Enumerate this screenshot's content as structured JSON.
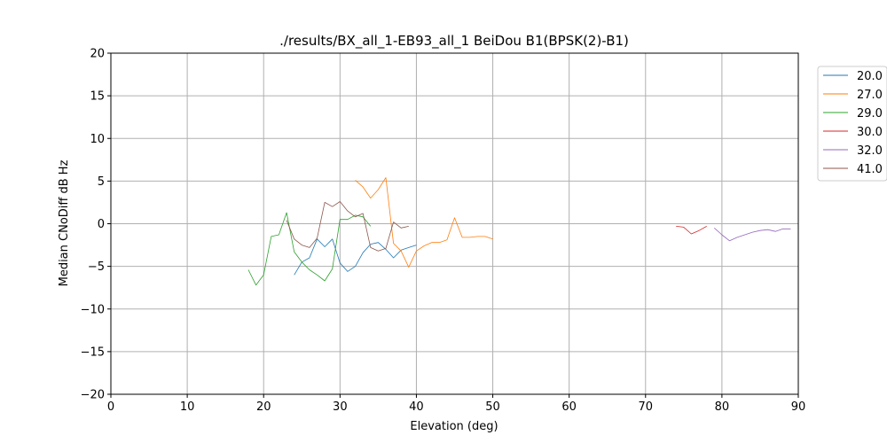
{
  "chart_data": {
    "type": "line",
    "title": "./results/BX_all_1-EB93_all_1 BeiDou B1(BPSK(2)-B1)",
    "xlabel": "Elevation (deg)",
    "ylabel": "Median CNoDiff dB Hz",
    "xlim": [
      0,
      90
    ],
    "ylim": [
      -20,
      20
    ],
    "xticks": [
      "0",
      "10",
      "20",
      "30",
      "40",
      "50",
      "60",
      "70",
      "80",
      "90"
    ],
    "yticks": [
      "20",
      "15",
      "10",
      "5",
      "0",
      "−5",
      "−10",
      "−15",
      "−20"
    ],
    "grid": true,
    "legend_position": "outside-right",
    "series": [
      {
        "name": "20.0",
        "color": "#1f77b4",
        "x": [
          24,
          25,
          26,
          27,
          28,
          29,
          30,
          31,
          32,
          33,
          34,
          35,
          36,
          37,
          38,
          39,
          40
        ],
        "y": [
          -6.0,
          -4.5,
          -4.0,
          -1.8,
          -2.7,
          -1.8,
          -4.6,
          -5.6,
          -5.0,
          -3.4,
          -2.4,
          -2.2,
          -3.0,
          -4.0,
          -3.1,
          -2.8,
          -2.5
        ]
      },
      {
        "name": "27.0",
        "color": "#ff7f0e",
        "x": [
          32,
          33,
          34,
          35,
          36,
          37,
          38,
          39,
          40,
          41,
          42,
          43,
          44,
          45,
          46,
          47,
          48,
          49,
          50
        ],
        "y": [
          5.1,
          4.3,
          3.0,
          4.0,
          5.4,
          -2.3,
          -3.2,
          -5.1,
          -3.2,
          -2.6,
          -2.2,
          -2.2,
          -1.9,
          0.7,
          -1.6,
          -1.6,
          -1.5,
          -1.5,
          -1.8
        ]
      },
      {
        "name": "29.0",
        "color": "#2ca02c",
        "x": [
          18,
          19,
          20,
          21,
          22,
          23,
          24,
          25,
          26,
          27,
          28,
          29,
          30,
          31,
          32,
          33,
          34
        ],
        "y": [
          -5.4,
          -7.2,
          -6.0,
          -1.5,
          -1.3,
          1.3,
          -3.3,
          -4.5,
          -5.4,
          -6.0,
          -6.7,
          -5.3,
          0.5,
          0.5,
          1.0,
          0.8,
          -0.3
        ]
      },
      {
        "name": "30.0",
        "color": "#d62728",
        "x": [
          74,
          75,
          76,
          77,
          78
        ],
        "y": [
          -0.3,
          -0.4,
          -1.2,
          -0.8,
          -0.3
        ]
      },
      {
        "name": "32.0",
        "color": "#9467bd",
        "x": [
          79,
          80,
          81,
          82,
          83,
          84,
          85,
          86,
          87,
          88,
          89
        ],
        "y": [
          -0.5,
          -1.3,
          -2.0,
          -1.6,
          -1.3,
          -1.0,
          -0.8,
          -0.7,
          -0.9,
          -0.6,
          -0.6
        ]
      },
      {
        "name": "41.0",
        "color": "#8c564b",
        "x": [
          23,
          24,
          25,
          26,
          27,
          28,
          29,
          30,
          31,
          32,
          33,
          34,
          35,
          36,
          37,
          38,
          39
        ],
        "y": [
          0.4,
          -1.8,
          -2.5,
          -2.8,
          -1.7,
          2.5,
          2.0,
          2.6,
          1.5,
          0.8,
          1.2,
          -2.8,
          -3.2,
          -2.9,
          0.2,
          -0.5,
          -0.3
        ]
      }
    ]
  }
}
